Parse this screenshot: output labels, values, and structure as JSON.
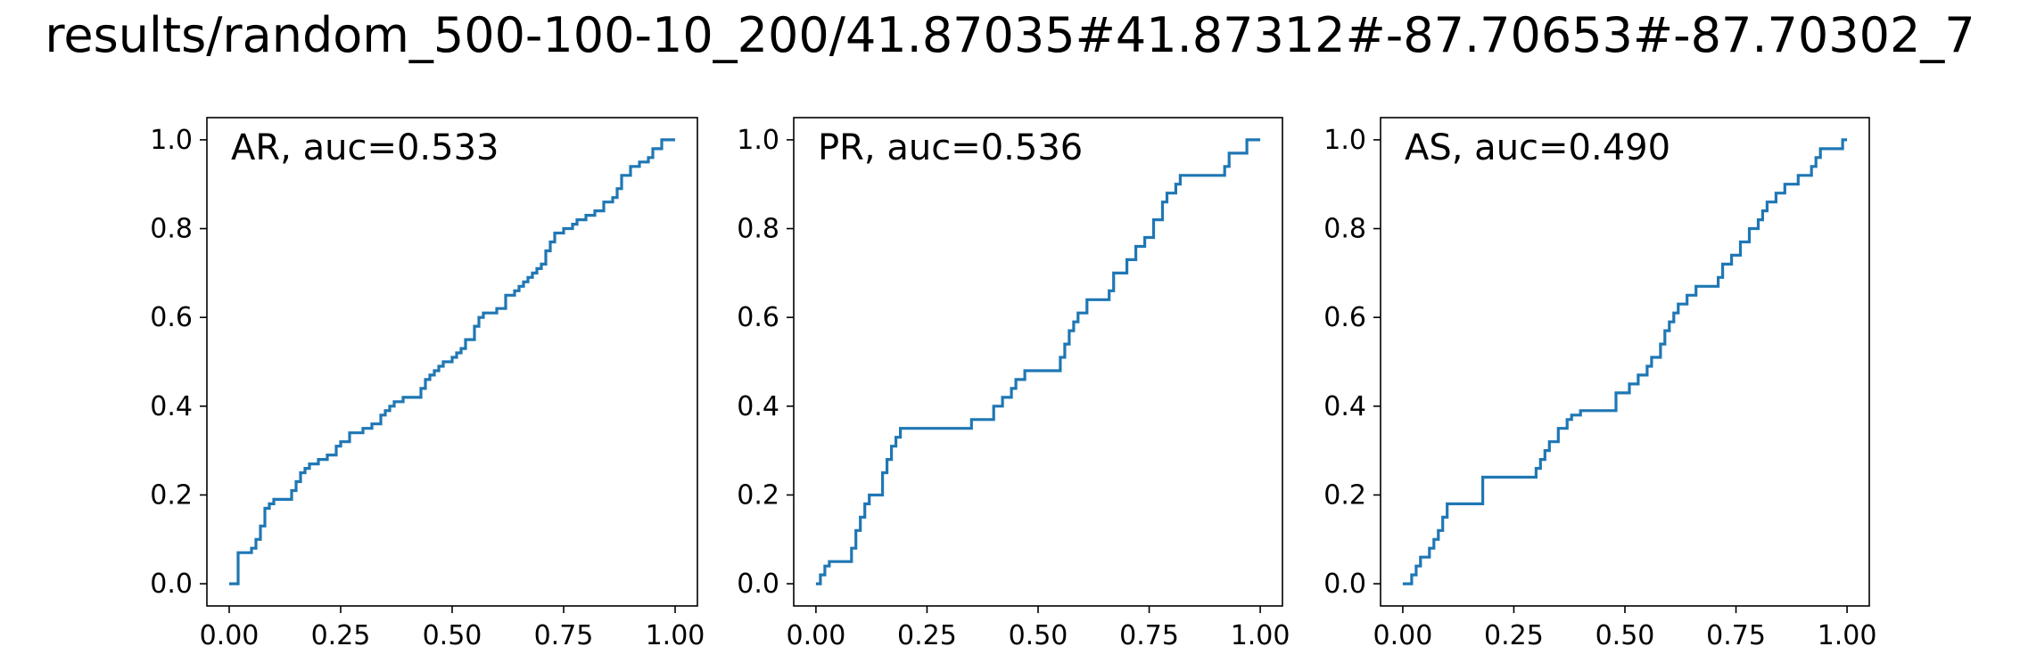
{
  "figure": {
    "title": "results/random_500-100-10_200/41.87035#41.87312#-87.70653#-87.70302_7"
  },
  "style": {
    "line_color": "#1f77b4"
  },
  "chart_data": [
    {
      "type": "line",
      "label": "AR, auc=0.533",
      "xlim": [
        -0.05,
        1.05
      ],
      "ylim": [
        -0.05,
        1.05
      ],
      "xticks": [
        "0.00",
        "0.25",
        "0.50",
        "0.75",
        "1.00"
      ],
      "yticks": [
        "0.0",
        "0.2",
        "0.4",
        "0.6",
        "0.8",
        "1.0"
      ],
      "grid": false,
      "series": [
        {
          "step": true,
          "x": [
            0.0,
            0.02,
            0.02,
            0.03,
            0.05,
            0.06,
            0.07,
            0.08,
            0.08,
            0.09,
            0.1,
            0.14,
            0.14,
            0.15,
            0.16,
            0.17,
            0.18,
            0.2,
            0.22,
            0.24,
            0.25,
            0.27,
            0.3,
            0.32,
            0.34,
            0.35,
            0.36,
            0.37,
            0.38,
            0.39,
            0.4,
            0.43,
            0.44,
            0.45,
            0.46,
            0.47,
            0.48,
            0.5,
            0.51,
            0.52,
            0.53,
            0.55,
            0.56,
            0.57,
            0.6,
            0.62,
            0.64,
            0.65,
            0.66,
            0.67,
            0.68,
            0.69,
            0.7,
            0.71,
            0.72,
            0.73,
            0.75,
            0.77,
            0.78,
            0.8,
            0.82,
            0.84,
            0.85,
            0.86,
            0.87,
            0.88,
            0.9,
            0.92,
            0.94,
            0.95,
            0.97,
            1.0
          ],
          "y": [
            0.0,
            0.01,
            0.07,
            0.07,
            0.08,
            0.1,
            0.13,
            0.16,
            0.17,
            0.18,
            0.19,
            0.19,
            0.21,
            0.23,
            0.25,
            0.26,
            0.27,
            0.28,
            0.29,
            0.31,
            0.32,
            0.34,
            0.35,
            0.36,
            0.38,
            0.39,
            0.4,
            0.41,
            0.41,
            0.42,
            0.42,
            0.44,
            0.46,
            0.47,
            0.48,
            0.49,
            0.5,
            0.51,
            0.52,
            0.53,
            0.55,
            0.58,
            0.6,
            0.61,
            0.62,
            0.65,
            0.66,
            0.67,
            0.68,
            0.69,
            0.7,
            0.71,
            0.72,
            0.75,
            0.77,
            0.79,
            0.8,
            0.81,
            0.82,
            0.83,
            0.84,
            0.86,
            0.86,
            0.87,
            0.89,
            0.92,
            0.94,
            0.95,
            0.96,
            0.98,
            1.0,
            1.0
          ]
        }
      ]
    },
    {
      "type": "line",
      "label": "PR, auc=0.536",
      "xlim": [
        -0.05,
        1.05
      ],
      "ylim": [
        -0.05,
        1.05
      ],
      "xticks": [
        "0.00",
        "0.25",
        "0.50",
        "0.75",
        "1.00"
      ],
      "yticks": [
        "0.0",
        "0.2",
        "0.4",
        "0.6",
        "0.8",
        "1.0"
      ],
      "grid": false,
      "series": [
        {
          "step": true,
          "x": [
            0.0,
            0.01,
            0.02,
            0.03,
            0.08,
            0.09,
            0.1,
            0.11,
            0.12,
            0.15,
            0.16,
            0.17,
            0.18,
            0.19,
            0.35,
            0.4,
            0.42,
            0.44,
            0.45,
            0.47,
            0.55,
            0.56,
            0.57,
            0.58,
            0.59,
            0.61,
            0.66,
            0.67,
            0.7,
            0.72,
            0.74,
            0.76,
            0.78,
            0.79,
            0.81,
            0.82,
            0.92,
            0.93,
            0.96,
            0.97,
            1.0
          ],
          "y": [
            0.0,
            0.02,
            0.04,
            0.05,
            0.08,
            0.12,
            0.15,
            0.18,
            0.2,
            0.25,
            0.28,
            0.31,
            0.33,
            0.35,
            0.37,
            0.4,
            0.42,
            0.44,
            0.46,
            0.48,
            0.51,
            0.54,
            0.57,
            0.59,
            0.61,
            0.64,
            0.66,
            0.7,
            0.73,
            0.76,
            0.78,
            0.82,
            0.86,
            0.88,
            0.9,
            0.92,
            0.94,
            0.97,
            0.97,
            1.0,
            1.0
          ]
        }
      ]
    },
    {
      "type": "line",
      "label": "AS, auc=0.490",
      "xlim": [
        -0.05,
        1.05
      ],
      "ylim": [
        -0.05,
        1.05
      ],
      "xticks": [
        "0.00",
        "0.25",
        "0.50",
        "0.75",
        "1.00"
      ],
      "yticks": [
        "0.0",
        "0.2",
        "0.4",
        "0.6",
        "0.8",
        "1.0"
      ],
      "grid": false,
      "series": [
        {
          "step": true,
          "x": [
            0.0,
            0.02,
            0.03,
            0.04,
            0.06,
            0.07,
            0.08,
            0.09,
            0.1,
            0.18,
            0.3,
            0.31,
            0.32,
            0.33,
            0.35,
            0.37,
            0.38,
            0.4,
            0.48,
            0.51,
            0.53,
            0.55,
            0.56,
            0.58,
            0.59,
            0.6,
            0.61,
            0.62,
            0.64,
            0.66,
            0.71,
            0.72,
            0.74,
            0.76,
            0.78,
            0.8,
            0.81,
            0.82,
            0.84,
            0.86,
            0.89,
            0.92,
            0.93,
            0.94,
            0.99,
            1.0
          ],
          "y": [
            0.0,
            0.02,
            0.04,
            0.06,
            0.08,
            0.1,
            0.12,
            0.15,
            0.18,
            0.24,
            0.26,
            0.28,
            0.3,
            0.32,
            0.35,
            0.37,
            0.38,
            0.39,
            0.43,
            0.45,
            0.47,
            0.49,
            0.51,
            0.54,
            0.57,
            0.59,
            0.61,
            0.63,
            0.65,
            0.67,
            0.69,
            0.72,
            0.74,
            0.77,
            0.8,
            0.82,
            0.84,
            0.86,
            0.88,
            0.9,
            0.92,
            0.94,
            0.96,
            0.98,
            1.0,
            1.0
          ]
        }
      ]
    }
  ]
}
